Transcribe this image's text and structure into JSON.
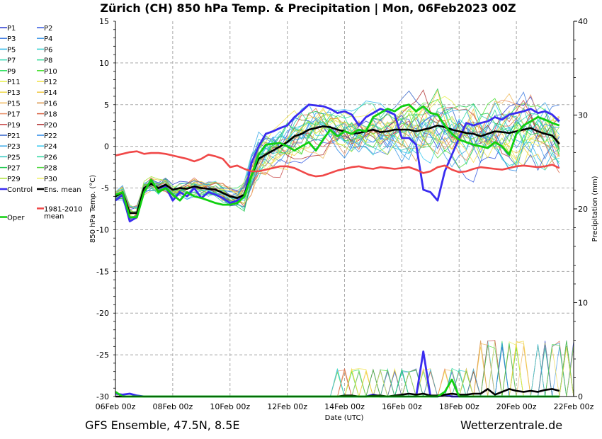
{
  "chart_data": {
    "type": "line",
    "title": "Zürich  (CH)  850 hPa Temp. & Precipitation | Mon, 06Feb2023 00Z",
    "xlabel": "Date (UTC)",
    "ylabel": "850 hPa Temp. (°C)",
    "y2label": "Precipitation (mm)",
    "ylim": [
      -30,
      15
    ],
    "y2lim": [
      0,
      40
    ],
    "xlim": [
      "06Feb 00z",
      "22Feb 00z"
    ],
    "x_ticks": [
      "06Feb 00z",
      "08Feb 00z",
      "10Feb 00z",
      "12Feb 00z",
      "14Feb 00z",
      "16Feb 00z",
      "18Feb 00z",
      "20Feb 00z",
      "22Feb 00z"
    ],
    "y_ticks": [
      15,
      10,
      5,
      0,
      -5,
      -10,
      -15,
      -20,
      -25,
      -30
    ],
    "y2_ticks": [
      40,
      30,
      20,
      10,
      0
    ],
    "grid": true,
    "legend_position": "left",
    "time_step_hours": 6,
    "legend": [
      {
        "name": "P1",
        "color": "#2a3bd0"
      },
      {
        "name": "P2",
        "color": "#3458e0"
      },
      {
        "name": "P3",
        "color": "#3a78e0"
      },
      {
        "name": "P4",
        "color": "#3c96e8"
      },
      {
        "name": "P5",
        "color": "#2cb6e8"
      },
      {
        "name": "P6",
        "color": "#2ed0d0"
      },
      {
        "name": "P7",
        "color": "#30d8b0"
      },
      {
        "name": "P8",
        "color": "#28d890"
      },
      {
        "name": "P9",
        "color": "#30e060"
      },
      {
        "name": "P10",
        "color": "#48e030"
      },
      {
        "name": "P11",
        "color": "#e8f048"
      },
      {
        "name": "P12",
        "color": "#f0e040"
      },
      {
        "name": "P13",
        "color": "#f0d848"
      },
      {
        "name": "P14",
        "color": "#f0c840"
      },
      {
        "name": "P15",
        "color": "#f0b858"
      },
      {
        "name": "P16",
        "color": "#d89040"
      },
      {
        "name": "P17",
        "color": "#e89068"
      },
      {
        "name": "P18",
        "color": "#d86040"
      },
      {
        "name": "P19",
        "color": "#c84848"
      },
      {
        "name": "P20",
        "color": "#b03030"
      },
      {
        "name": "P21",
        "color": "#3060c8"
      },
      {
        "name": "P22",
        "color": "#2888e8"
      },
      {
        "name": "P23",
        "color": "#38a8e8"
      },
      {
        "name": "P24",
        "color": "#30c8f0"
      },
      {
        "name": "P25",
        "color": "#30c8c0"
      },
      {
        "name": "P26",
        "color": "#28d8a0"
      },
      {
        "name": "P27",
        "color": "#20c850"
      },
      {
        "name": "P28",
        "color": "#50d840"
      },
      {
        "name": "P29",
        "color": "#a8e030"
      },
      {
        "name": "P30",
        "color": "#f0f060"
      },
      {
        "name": "Control",
        "color": "#3a2cf0"
      },
      {
        "name": "Ens. mean",
        "color": "#000000"
      },
      {
        "name": "Oper",
        "color": "#10d010"
      },
      {
        "name": "1981-2010\nmean",
        "color": "#f04848"
      }
    ],
    "series_temp": [
      {
        "name": "Control",
        "values": [
          -6.5,
          -5.8,
          -9,
          -8.5,
          -5,
          -4.5,
          -5,
          -4.8,
          -6.5,
          -5.5,
          -6,
          -5,
          -6.2,
          -5.5,
          -5.8,
          -6.2,
          -6.8,
          -6.5,
          -6,
          -2,
          0,
          1.5,
          1.8,
          2.2,
          2.5,
          3.5,
          4.2,
          5,
          4.9,
          4.8,
          4.5,
          4,
          4.2,
          3.8,
          2.5,
          3.5,
          4,
          4.5,
          4.2,
          3.8,
          1,
          1,
          0.2,
          -5.2,
          -5.5,
          -6.5,
          -3,
          -1,
          1,
          2.8,
          2.5,
          2.8,
          3,
          3.5,
          3.2,
          3.8,
          4,
          4.2,
          4.5,
          4,
          4.2,
          3.8,
          3
        ]
      },
      {
        "name": "Ens. mean",
        "values": [
          -6,
          -5.5,
          -8,
          -8,
          -5,
          -4.5,
          -5,
          -4.6,
          -5.2,
          -5,
          -5.1,
          -4.8,
          -5,
          -5.1,
          -5.2,
          -5.6,
          -6,
          -6.2,
          -5.8,
          -3.5,
          -1.5,
          -1,
          -0.5,
          0,
          0.5,
          1.2,
          1.5,
          2,
          2.2,
          2.4,
          2.3,
          2,
          1.8,
          1.5,
          1.6,
          1.8,
          2,
          1.7,
          1.8,
          2,
          2,
          2,
          1.8,
          2,
          2.2,
          2.5,
          2.3,
          2,
          1.8,
          1.6,
          1.5,
          1.2,
          1.5,
          1.8,
          1.7,
          1.6,
          1.8,
          2,
          2.2,
          1.8,
          1.5,
          1.3,
          0.3
        ]
      },
      {
        "name": "Oper",
        "values": [
          -5.8,
          -5.5,
          -8.5,
          -8.5,
          -5.5,
          -4,
          -5.5,
          -5,
          -5.8,
          -6.5,
          -5.5,
          -6,
          -6.2,
          -6.5,
          -6.8,
          -7,
          -7,
          -6.8,
          -6,
          -3.5,
          -1,
          0.2,
          0.3,
          0.4,
          0,
          -0.5,
          0,
          0.5,
          -0.5,
          0.8,
          2,
          1.2,
          1.8,
          1.5,
          2,
          1.8,
          3.5,
          4,
          4.5,
          4.2,
          4.8,
          5,
          4.2,
          4.8,
          4,
          3.8,
          2.5,
          1.5,
          0.8,
          0.5,
          0.2,
          0,
          -0.2,
          0.5,
          0,
          -1,
          1.5,
          2.5,
          3,
          3.5,
          3.2,
          2.8,
          2.5
        ]
      },
      {
        "name": "1981-2010\nmean",
        "values": [
          -1.1,
          -0.9,
          -0.7,
          -0.6,
          -0.9,
          -0.8,
          -0.8,
          -0.9,
          -1.1,
          -1.3,
          -1.5,
          -1.8,
          -1.5,
          -1,
          -1.2,
          -1.5,
          -2.5,
          -2.3,
          -2.7,
          -3,
          -3,
          -2.8,
          -2.6,
          -2.4,
          -2.4,
          -2.6,
          -3,
          -3.4,
          -3.6,
          -3.5,
          -3.2,
          -2.9,
          -2.7,
          -2.5,
          -2.4,
          -2.6,
          -2.7,
          -2.5,
          -2.6,
          -2.7,
          -2.6,
          -2.5,
          -2.8,
          -3.2,
          -3,
          -2.5,
          -2.3,
          -2.8,
          -3.1,
          -3,
          -2.7,
          -2.5,
          -2.6,
          -2.7,
          -2.8,
          -2.6,
          -2.4,
          -2.3,
          -2.4,
          -2.5,
          -2.4,
          -2.2,
          -2.6
        ]
      }
    ],
    "series_precip": [
      {
        "name": "Control",
        "values": [
          0.3,
          0.2,
          0.3,
          0.1,
          0,
          0,
          0,
          0,
          0,
          0,
          0,
          0,
          0,
          0,
          0,
          0,
          0,
          0,
          0,
          0,
          0,
          0,
          0,
          0,
          0,
          0,
          0,
          0,
          0,
          0,
          0,
          0,
          0,
          0,
          0,
          0,
          0.2,
          0,
          0,
          0,
          0,
          0,
          0,
          4.8,
          0,
          0,
          0.2,
          0,
          0,
          0,
          0,
          0,
          0,
          0,
          0,
          0,
          0,
          0,
          0,
          0,
          0,
          0,
          0
        ]
      },
      {
        "name": "Ens. mean",
        "values": [
          0,
          0,
          0,
          0,
          0,
          0,
          0,
          0,
          0,
          0,
          0,
          0,
          0,
          0,
          0,
          0,
          0,
          0,
          0,
          0,
          0,
          0,
          0,
          0,
          0,
          0,
          0,
          0,
          0,
          0,
          0,
          0,
          0.1,
          0.1,
          0,
          0,
          0.1,
          0.1,
          0,
          0.1,
          0.2,
          0.3,
          0.2,
          0.3,
          0.1,
          0.1,
          0.2,
          0.3,
          0.2,
          0.2,
          0.3,
          0.3,
          0.8,
          0.2,
          0.5,
          0.8,
          0.6,
          0.5,
          0.6,
          0.5,
          0.7,
          0.8,
          0.6
        ]
      },
      {
        "name": "Oper",
        "values": [
          0.5,
          0,
          0,
          0,
          0,
          0,
          0,
          0,
          0,
          0,
          0,
          0,
          0,
          0,
          0,
          0,
          0,
          0,
          0,
          0,
          0,
          0,
          0,
          0,
          0,
          0,
          0,
          0,
          0,
          0,
          0,
          0,
          0,
          0,
          0,
          0,
          0,
          0,
          0,
          0,
          0,
          0,
          0,
          0,
          0,
          0,
          0.5,
          1.8,
          0,
          0,
          0,
          0,
          0,
          0,
          0,
          0,
          0,
          0,
          0,
          0,
          0,
          0,
          0
        ]
      }
    ],
    "member_spread_note": ""
  },
  "footer": {
    "left": "GFS Ensemble, 47.5N, 8.5E",
    "right": "Wetterzentrale.de"
  }
}
